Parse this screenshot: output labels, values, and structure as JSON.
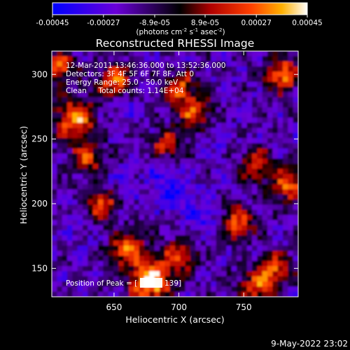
{
  "chart_data": {
    "type": "heatmap",
    "title": "Reconstructed RHESSI Image",
    "xlabel": "Heliocentric X (arcsec)",
    "ylabel": "Heliocentric Y (arcsec)",
    "xlim": [
      602,
      792
    ],
    "ylim": [
      128,
      318
    ],
    "x_ticks": [
      650,
      700,
      750
    ],
    "y_ticks": [
      150,
      200,
      250,
      300
    ],
    "colorbar": {
      "ticks": [
        "-0.00045",
        "-0.00027",
        "-8.9e-05",
        "8.9e-05",
        "0.00027",
        "0.00045"
      ],
      "tick_values": [
        -0.00045,
        -0.00027,
        -8.9e-05,
        8.9e-05,
        0.00027,
        0.00045
      ],
      "range": [
        -0.00045,
        0.00045
      ],
      "units_line1": "(photons cm",
      "units_exp1": "-2",
      "units_mid": " s",
      "units_exp2": "-1",
      "units_mid2": " asec",
      "units_exp3": "-2",
      "units_end": ")"
    },
    "info_lines": [
      "12-Mar-2011 13:46:36.000 to 13:52:36.000",
      "Detectors: 3F 4F 5F 6F 7F 8F, Att 0",
      "Energy Range: 25.0 - 50.0 keV",
      "Clean     Total counts: 1.14E+04"
    ],
    "peak_label": "Position of Peak = [",
    "peak_suffix": "139]",
    "peak_position": [
      678,
      139
    ],
    "grid": false,
    "emission_sources": [
      {
        "x": 678,
        "y": 140,
        "amplitude": 0.00045
      },
      {
        "x": 620,
        "y": 265,
        "amplitude": 0.00032
      },
      {
        "x": 650,
        "y": 295,
        "amplitude": 0.00028
      },
      {
        "x": 607,
        "y": 305,
        "amplitude": 0.00026
      },
      {
        "x": 700,
        "y": 290,
        "amplitude": 0.00022
      },
      {
        "x": 712,
        "y": 270,
        "amplitude": 0.0002
      },
      {
        "x": 780,
        "y": 300,
        "amplitude": 0.0003
      },
      {
        "x": 760,
        "y": 230,
        "amplitude": 0.00018
      },
      {
        "x": 785,
        "y": 215,
        "amplitude": 0.00026
      },
      {
        "x": 745,
        "y": 185,
        "amplitude": 0.00024
      },
      {
        "x": 775,
        "y": 150,
        "amplitude": 0.00022
      },
      {
        "x": 760,
        "y": 135,
        "amplitude": 0.00024
      },
      {
        "x": 640,
        "y": 200,
        "amplitude": 0.00025
      },
      {
        "x": 660,
        "y": 165,
        "amplitude": 0.00028
      },
      {
        "x": 700,
        "y": 160,
        "amplitude": 0.0002
      },
      {
        "x": 690,
        "y": 245,
        "amplitude": 0.00016
      },
      {
        "x": 630,
        "y": 235,
        "amplitude": 0.00018
      }
    ],
    "negative_regions": [
      {
        "x": 700,
        "y": 205,
        "amplitude": -0.0003
      },
      {
        "x": 685,
        "y": 225,
        "amplitude": -0.00025
      },
      {
        "x": 720,
        "y": 190,
        "amplitude": -0.00025
      },
      {
        "x": 650,
        "y": 215,
        "amplitude": -0.00016
      },
      {
        "x": 660,
        "y": 275,
        "amplitude": -0.00016
      },
      {
        "x": 730,
        "y": 250,
        "amplitude": -0.00014
      },
      {
        "x": 620,
        "y": 185,
        "amplitude": -0.00016
      }
    ]
  },
  "footer": {
    "timestamp": "9-May-2022 23:02"
  }
}
